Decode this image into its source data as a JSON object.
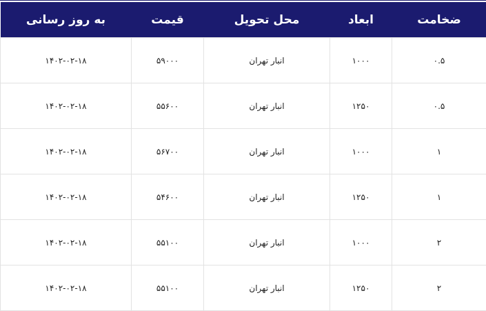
{
  "table": {
    "headers": [
      "ضخامت",
      "ابعاد",
      "محل تحویل",
      "قیمت",
      "به روز رسانی"
    ],
    "rows": [
      [
        "۰.۵",
        "۱۰۰۰",
        "انبار تهران",
        "۵۹۰۰۰",
        "۱۴۰۲-۰۲-۱۸"
      ],
      [
        "۰.۵",
        "۱۲۵۰",
        "انبار تهران",
        "۵۵۶۰۰",
        "۱۴۰۲-۰۲-۱۸"
      ],
      [
        "۱",
        "۱۰۰۰",
        "انبار تهران",
        "۵۶۷۰۰",
        "۱۴۰۲-۰۲-۱۸"
      ],
      [
        "۱",
        "۱۲۵۰",
        "انبار تهران",
        "۵۴۶۰۰",
        "۱۴۰۲-۰۲-۱۸"
      ],
      [
        "۲",
        "۱۰۰۰",
        "انبار تهران",
        "۵۵۱۰۰",
        "۱۴۰۲-۰۲-۱۸"
      ],
      [
        "۲",
        "۱۲۵۰",
        "انبار تهران",
        "۵۵۱۰۰",
        "۱۴۰۲-۰۲-۱۸"
      ]
    ]
  },
  "colors": {
    "header_bg": "#1b1b6f",
    "header_text": "#ffffff",
    "border": "#e2e2e2"
  }
}
